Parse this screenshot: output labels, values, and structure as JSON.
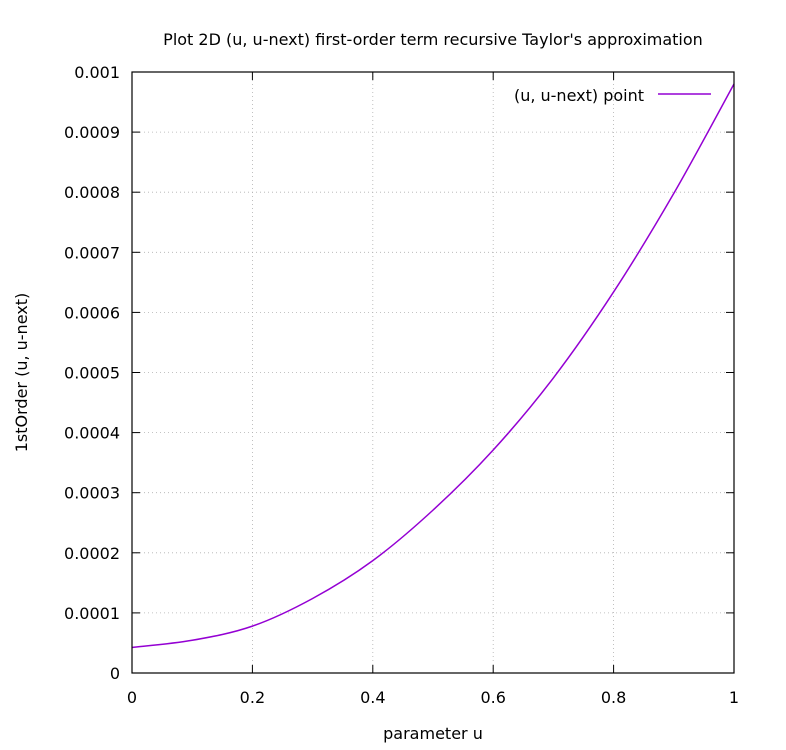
{
  "chart_data": {
    "type": "line",
    "title": "Plot 2D (u, u-next) first-order term recursive Taylor's approximation",
    "xlabel": "parameter u",
    "ylabel": "1stOrder (u, u-next)",
    "xlim": [
      0,
      1
    ],
    "ylim": [
      0,
      0.001
    ],
    "xticks": [
      "0",
      "0.2",
      "0.4",
      "0.6",
      "0.8",
      "1"
    ],
    "yticks": [
      "0",
      "0.0001",
      "0.0002",
      "0.0003",
      "0.0004",
      "0.0005",
      "0.0006",
      "0.0007",
      "0.0008",
      "0.0009",
      "0.001"
    ],
    "grid": true,
    "legend_position": "top-right",
    "series": [
      {
        "name": "(u, u-next) point",
        "color": "#9400d3",
        "x": [
          0,
          0.1,
          0.2,
          0.3,
          0.4,
          0.5,
          0.6,
          0.7,
          0.8,
          0.9,
          1.0
        ],
        "y": [
          4.25e-05,
          5.45e-05,
          7.8e-05,
          0.000124,
          0.000187,
          0.000271,
          0.000371,
          0.000491,
          0.000634,
          0.000798,
          0.00098
        ]
      }
    ]
  }
}
